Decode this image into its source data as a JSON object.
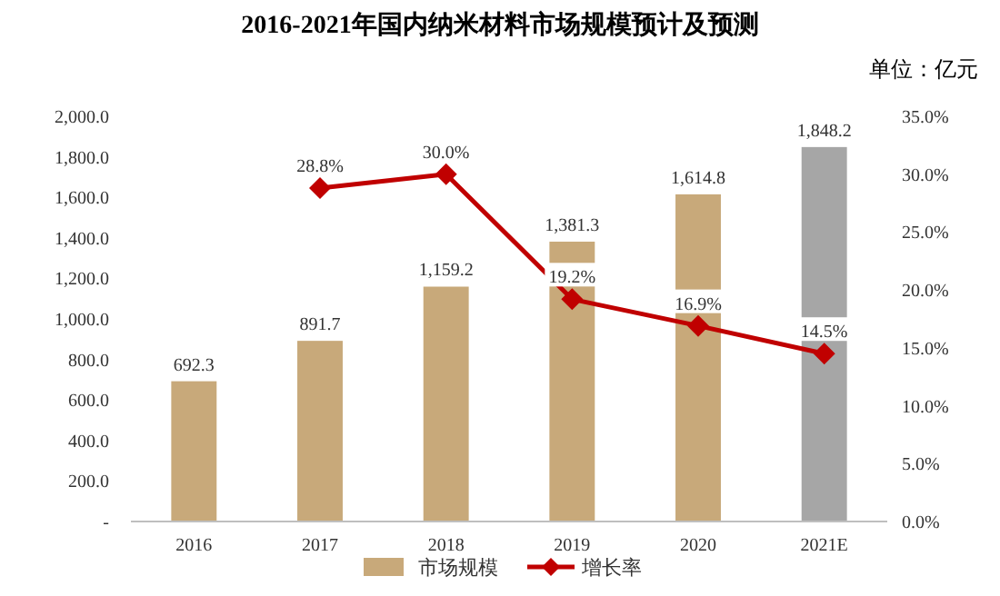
{
  "chart_data": {
    "type": "bar",
    "title": "2016-2021年国内纳米材料市场规模预计及预测",
    "annotations": [
      "单位：亿元"
    ],
    "categories": [
      "2016",
      "2017",
      "2018",
      "2019",
      "2020",
      "2021E"
    ],
    "series": [
      {
        "name": "市场规模",
        "color": "#c8a97a",
        "colors": [
          "#c8a97a",
          "#c8a97a",
          "#c8a97a",
          "#c8a97a",
          "#c8a97a",
          "#a6a6a6"
        ],
        "values": [
          692.3,
          891.7,
          1159.2,
          1381.3,
          1614.8,
          1848.2
        ],
        "value_labels": [
          "692.3",
          "891.7",
          "1,159.2",
          "1,381.3",
          "1,614.8",
          "1,848.2"
        ]
      },
      {
        "name": "增长率",
        "type": "line",
        "axis": "y2",
        "color": "#c00000",
        "marker": "diamond",
        "values": [
          null,
          28.8,
          30.0,
          19.2,
          16.9,
          14.5
        ],
        "value_labels": [
          null,
          "28.8%",
          "30.0%",
          "19.2%",
          "16.9%",
          "14.5%"
        ]
      }
    ],
    "ylim": [
      0,
      2000
    ],
    "yticks": [
      {
        "value": 0,
        "label": "-"
      },
      {
        "value": 200,
        "label": "200.0"
      },
      {
        "value": 400,
        "label": "400.0"
      },
      {
        "value": 600,
        "label": "600.0"
      },
      {
        "value": 800,
        "label": "800.0"
      },
      {
        "value": 1000,
        "label": "1,000.0"
      },
      {
        "value": 1200,
        "label": "1,200.0"
      },
      {
        "value": 1400,
        "label": "1,400.0"
      },
      {
        "value": 1600,
        "label": "1,600.0"
      },
      {
        "value": 1800,
        "label": "1,800.0"
      },
      {
        "value": 2000,
        "label": "2,000.0"
      }
    ],
    "y2lim": [
      0,
      35
    ],
    "y2ticks": [
      {
        "value": 0,
        "label": "0.0%"
      },
      {
        "value": 5,
        "label": "5.0%"
      },
      {
        "value": 10,
        "label": "10.0%"
      },
      {
        "value": 15,
        "label": "15.0%"
      },
      {
        "value": 20,
        "label": "20.0%"
      },
      {
        "value": 25,
        "label": "25.0%"
      },
      {
        "value": 30,
        "label": "30.0%"
      },
      {
        "value": 35,
        "label": "35.0%"
      }
    ],
    "legend": "bottom",
    "grid": false
  }
}
